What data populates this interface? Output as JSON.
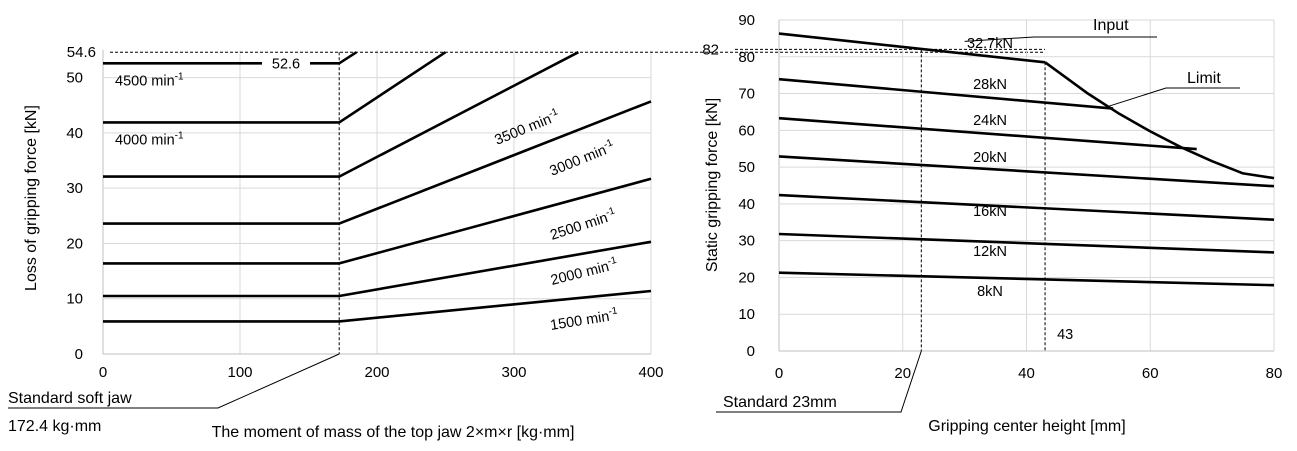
{
  "chart_data": [
    {
      "type": "line",
      "xlabel": "The moment of mass of the top jaw 2×m×r [kg·mm]",
      "ylabel": "Loss of gripping force [kN]",
      "xlim": [
        0,
        400
      ],
      "ylim": [
        0,
        55
      ],
      "xticks": [
        "0",
        "100",
        "200",
        "300",
        "400"
      ],
      "yticks": [
        "0",
        "10",
        "20",
        "30",
        "40",
        "50"
      ],
      "top_tick": "54.6",
      "grid": true,
      "series": [
        {
          "name": "1500 min",
          "sup": "-1",
          "x": [
            0,
            172.4,
            400
          ],
          "y": [
            5.9,
            5.9,
            11.4
          ]
        },
        {
          "name": "2000 min",
          "sup": "-1",
          "x": [
            0,
            172.4,
            400
          ],
          "y": [
            10.5,
            10.5,
            20.3
          ]
        },
        {
          "name": "2500 min",
          "sup": "-1",
          "x": [
            0,
            172.4,
            400
          ],
          "y": [
            16.4,
            16.4,
            31.7
          ]
        },
        {
          "name": "3000 min",
          "sup": "-1",
          "x": [
            0,
            172.4,
            400
          ],
          "y": [
            23.6,
            23.6,
            45.7
          ]
        },
        {
          "name": "3500 min",
          "sup": "-1",
          "x": [
            0,
            172.4,
            347
          ],
          "y": [
            32.1,
            32.1,
            54.6
          ]
        },
        {
          "name": "4000 min",
          "sup": "-1",
          "x": [
            0,
            172.4,
            250
          ],
          "y": [
            41.9,
            41.9,
            54.6
          ]
        },
        {
          "name": "4500 min",
          "sup": "-1",
          "x": [
            0,
            172.4,
            185
          ],
          "y": [
            52.6,
            52.6,
            54.6
          ]
        }
      ],
      "annotations": {
        "value_52_6": "52.6",
        "ref_line": {
          "x": 172.4,
          "label_line1": "Standard soft jaw",
          "label_line2": "172.4 kg·mm"
        }
      }
    },
    {
      "type": "line",
      "xlabel": "Gripping center height [mm]",
      "ylabel": "Static gripping force [kN]",
      "xlim": [
        0,
        80
      ],
      "ylim": [
        0,
        90
      ],
      "xticks": [
        "0",
        "20",
        "40",
        "60",
        "80"
      ],
      "yticks": [
        "0",
        "10",
        "20",
        "30",
        "40",
        "50",
        "60",
        "70",
        "80",
        "90"
      ],
      "left_value": "82",
      "grid": true,
      "series": [
        {
          "name": "8kN",
          "x": [
            0,
            80
          ],
          "y": [
            21.3,
            17.9
          ]
        },
        {
          "name": "12kN",
          "x": [
            0,
            80
          ],
          "y": [
            31.8,
            26.8
          ]
        },
        {
          "name": "16kN",
          "x": [
            0,
            80
          ],
          "y": [
            42.4,
            35.7
          ]
        },
        {
          "name": "20kN",
          "x": [
            0,
            80
          ],
          "y": [
            52.9,
            44.8
          ]
        },
        {
          "name": "24kN",
          "x": [
            0,
            67.5
          ],
          "y": [
            63.3,
            54.9
          ]
        },
        {
          "name": "28kN",
          "x": [
            0,
            54
          ],
          "y": [
            73.9,
            65.9
          ]
        },
        {
          "name": "32.7kN",
          "x": [
            0,
            43
          ],
          "y": [
            86.3,
            78.5
          ]
        },
        {
          "name": "Limit",
          "x": [
            43,
            50,
            55,
            60,
            65,
            70,
            75,
            80
          ],
          "y": [
            78.5,
            69.9,
            64.5,
            59.7,
            55.4,
            51.6,
            48.3,
            47.0
          ]
        }
      ],
      "annotations": {
        "input": "Input",
        "limit": "Limit",
        "value_43": "43",
        "x_ref": 23,
        "x_ref_label": "Standard 23mm"
      }
    }
  ]
}
